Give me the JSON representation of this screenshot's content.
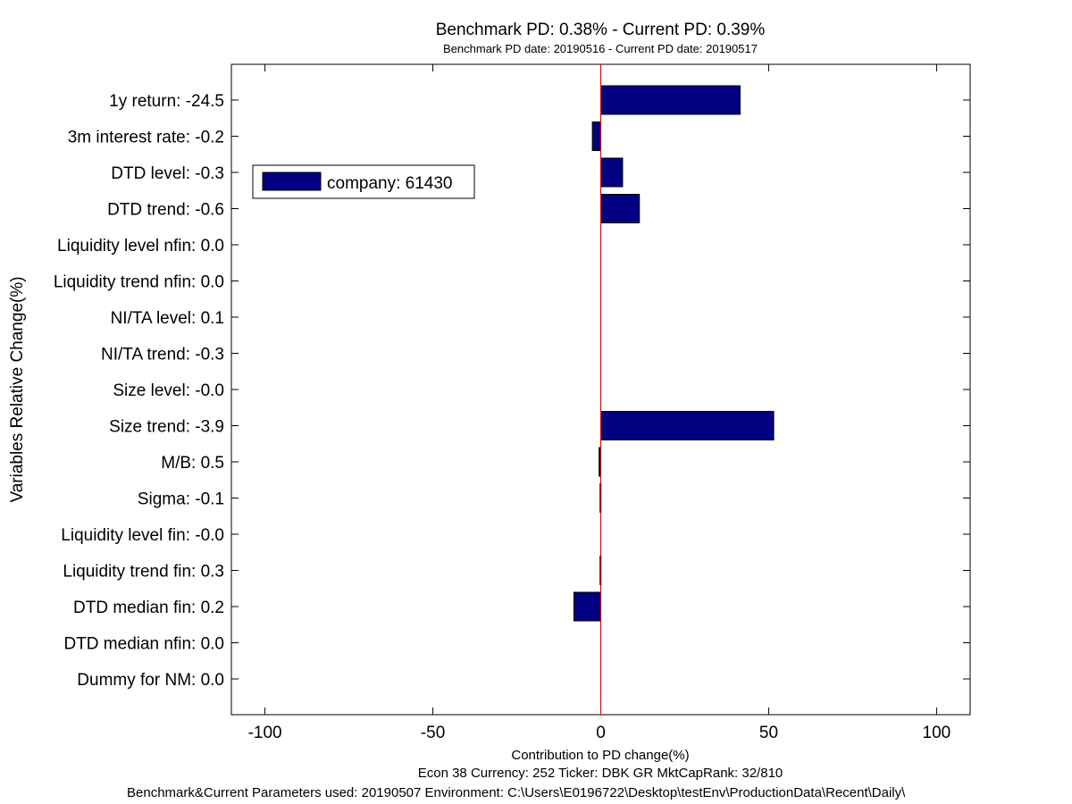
{
  "chart_data": {
    "type": "bar",
    "orientation": "horizontal",
    "title": "Benchmark PD: 0.38% - Current PD: 0.39%",
    "subtitle": "Benchmark PD date: 20190516 - Current PD date: 20190517",
    "xlabel": "Contribution to PD change(%)",
    "ylabel": "Variables Relative Change(%)",
    "xlim": [
      -110,
      110
    ],
    "xticks": [
      -100,
      -50,
      0,
      50,
      100
    ],
    "categories": [
      "1y return: -24.5",
      "3m interest rate: -0.2",
      "DTD level: -0.3",
      "DTD trend: -0.6",
      "Liquidity level nfin: 0.0",
      "Liquidity trend nfin: 0.0",
      "NI/TA level: 0.1",
      "NI/TA trend: -0.3",
      "Size level: -0.0",
      "Size trend: -3.9",
      "M/B: 0.5",
      "Sigma: -0.1",
      "Liquidity level fin: -0.0",
      "Liquidity trend fin: 0.3",
      "DTD median fin: 0.2",
      "DTD median nfin: 0.0",
      "Dummy for NM: 0.0"
    ],
    "series": [
      {
        "name": "company: 61430",
        "color": "#000080",
        "values": [
          41.5,
          -2.5,
          6.5,
          11.5,
          0,
          0,
          0,
          0,
          0,
          51.5,
          -0.5,
          -0.2,
          0,
          -0.2,
          -8,
          0,
          0
        ]
      }
    ],
    "reference_line": {
      "x": 0,
      "color": "#cc0000"
    },
    "legend": {
      "position": "upper-left"
    },
    "grid": false,
    "footer_lines": [
      "Econ 38  Currency: 252  Ticker: DBK GR  MktCapRank: 32/810",
      "Benchmark&Current Parameters used: 20190507     Environment: C:\\Users\\E0196722\\Desktop\\testEnv\\ProductionData\\Recent\\Daily\\"
    ]
  }
}
